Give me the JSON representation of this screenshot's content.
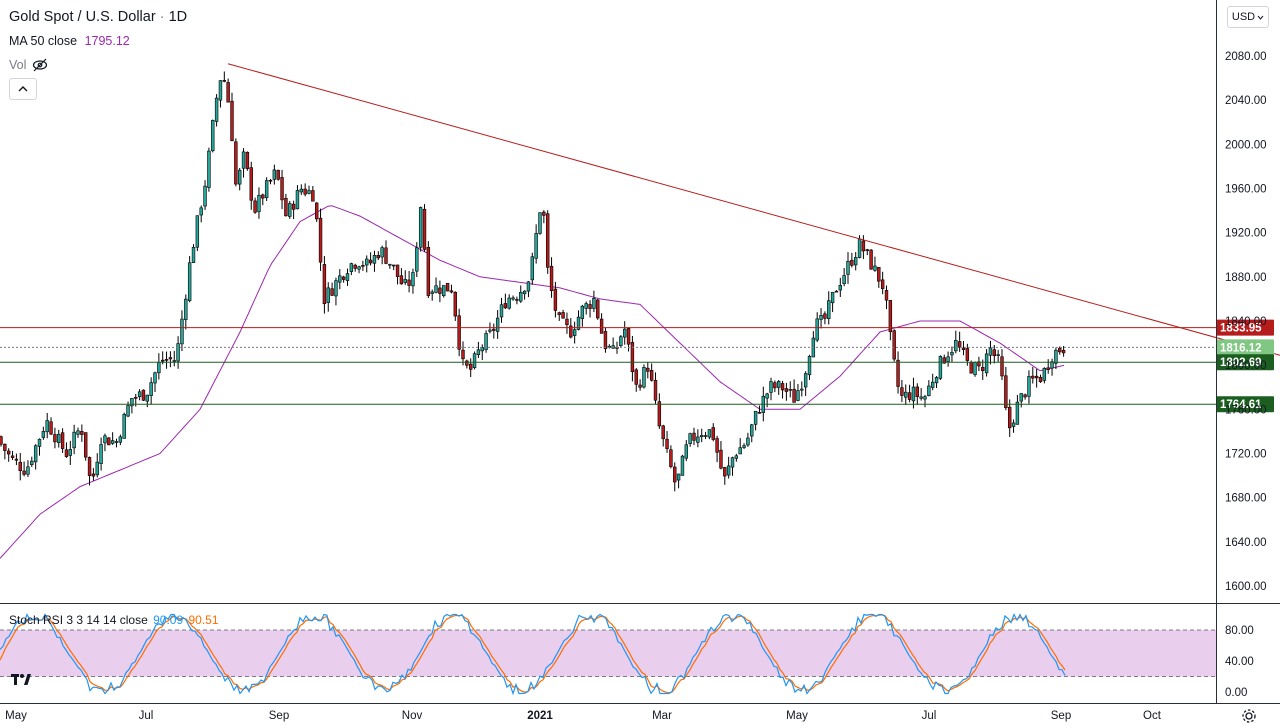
{
  "header": {
    "symbol": "Gold Spot / U.S. Dollar",
    "sep1": "·",
    "interval": "1D",
    "ma_label": "MA 50 close",
    "ma_value": "1795.12",
    "vol_label": "Vol",
    "currency": "USD"
  },
  "stoch": {
    "label": "Stoch RSI 3 3 14 14 close",
    "k_value": "90.09",
    "d_value": "90.51"
  },
  "colors": {
    "up": "#26a69a",
    "candle_up_body": "#ffffff",
    "candle_border": "#000000",
    "down": "#b71c1c",
    "ma": "#9c27b0",
    "trend": "#b71c1c",
    "support": "#1b5e20",
    "stoch_k": "#2196f3",
    "stoch_d": "#ff6d00",
    "stoch_band": "#e1bee7"
  },
  "chart_data": [
    {
      "type": "candlestick",
      "title": "Gold Spot / U.S. Dollar · 1D",
      "x_ticks": [
        "May",
        "Jul",
        "Sep",
        "Nov",
        "2021",
        "Mar",
        "May",
        "Jul",
        "Sep",
        "Oct"
      ],
      "y_ticks": [
        1600,
        1640,
        1680,
        1720,
        1760,
        1800,
        1840,
        1880,
        1920,
        1960,
        2000,
        2040,
        2080
      ],
      "ylim": [
        1586,
        2098
      ],
      "close_path": [
        [
          0,
          1735
        ],
        [
          15,
          1715
        ],
        [
          30,
          1705
        ],
        [
          50,
          1750
        ],
        [
          70,
          1720
        ],
        [
          85,
          1745
        ],
        [
          95,
          1690
        ],
        [
          105,
          1735
        ],
        [
          120,
          1730
        ],
        [
          135,
          1770
        ],
        [
          150,
          1775
        ],
        [
          165,
          1805
        ],
        [
          180,
          1805
        ],
        [
          195,
          1900
        ],
        [
          210,
          1970
        ],
        [
          220,
          2040
        ],
        [
          226,
          2068
        ],
        [
          234,
          2030
        ],
        [
          240,
          1960
        ],
        [
          248,
          1990
        ],
        [
          258,
          1940
        ],
        [
          270,
          1960
        ],
        [
          280,
          1975
        ],
        [
          290,
          1935
        ],
        [
          305,
          1960
        ],
        [
          318,
          1955
        ],
        [
          328,
          1860
        ],
        [
          340,
          1875
        ],
        [
          352,
          1890
        ],
        [
          362,
          1895
        ],
        [
          372,
          1890
        ],
        [
          384,
          1905
        ],
        [
          396,
          1890
        ],
        [
          408,
          1870
        ],
        [
          418,
          1880
        ],
        [
          424,
          1950
        ],
        [
          432,
          1870
        ],
        [
          444,
          1870
        ],
        [
          456,
          1870
        ],
        [
          466,
          1800
        ],
        [
          474,
          1795
        ],
        [
          484,
          1815
        ],
        [
          496,
          1830
        ],
        [
          510,
          1860
        ],
        [
          522,
          1865
        ],
        [
          534,
          1880
        ],
        [
          546,
          1955
        ],
        [
          552,
          1880
        ],
        [
          562,
          1840
        ],
        [
          574,
          1830
        ],
        [
          586,
          1850
        ],
        [
          598,
          1860
        ],
        [
          608,
          1820
        ],
        [
          618,
          1810
        ],
        [
          628,
          1835
        ],
        [
          640,
          1780
        ],
        [
          652,
          1800
        ],
        [
          664,
          1740
        ],
        [
          680,
          1690
        ],
        [
          692,
          1730
        ],
        [
          704,
          1740
        ],
        [
          716,
          1740
        ],
        [
          728,
          1695
        ],
        [
          738,
          1720
        ],
        [
          750,
          1730
        ],
        [
          762,
          1760
        ],
        [
          774,
          1780
        ],
        [
          786,
          1780
        ],
        [
          798,
          1770
        ],
        [
          808,
          1790
        ],
        [
          818,
          1835
        ],
        [
          828,
          1840
        ],
        [
          840,
          1870
        ],
        [
          852,
          1890
        ],
        [
          864,
          1910
        ],
        [
          876,
          1890
        ],
        [
          888,
          1870
        ],
        [
          896,
          1810
        ],
        [
          904,
          1770
        ],
        [
          916,
          1775
        ],
        [
          928,
          1770
        ],
        [
          940,
          1795
        ],
        [
          950,
          1810
        ],
        [
          960,
          1820
        ],
        [
          972,
          1800
        ],
        [
          984,
          1795
        ],
        [
          994,
          1815
        ],
        [
          1004,
          1800
        ],
        [
          1012,
          1740
        ],
        [
          1022,
          1765
        ],
        [
          1034,
          1785
        ],
        [
          1046,
          1790
        ],
        [
          1056,
          1810
        ],
        [
          1066,
          1816
        ]
      ],
      "ma50_path": [
        [
          0,
          1625
        ],
        [
          40,
          1665
        ],
        [
          80,
          1690
        ],
        [
          120,
          1705
        ],
        [
          160,
          1720
        ],
        [
          200,
          1760
        ],
        [
          240,
          1830
        ],
        [
          270,
          1890
        ],
        [
          300,
          1930
        ],
        [
          330,
          1945
        ],
        [
          360,
          1935
        ],
        [
          400,
          1915
        ],
        [
          440,
          1895
        ],
        [
          480,
          1880
        ],
        [
          520,
          1875
        ],
        [
          560,
          1870
        ],
        [
          600,
          1860
        ],
        [
          640,
          1855
        ],
        [
          680,
          1820
        ],
        [
          720,
          1785
        ],
        [
          760,
          1760
        ],
        [
          800,
          1760
        ],
        [
          840,
          1790
        ],
        [
          880,
          1830
        ],
        [
          920,
          1840
        ],
        [
          960,
          1840
        ],
        [
          1000,
          1820
        ],
        [
          1040,
          1795
        ],
        [
          1065,
          1800
        ]
      ],
      "lines": [
        {
          "name": "trend-line",
          "from": [
            228,
            2073
          ],
          "to": [
            1216,
            1825
          ]
        },
        {
          "name": "resistance",
          "y": 1833.95,
          "price_label": "1833.95"
        },
        {
          "name": "last-price",
          "y": 1816.12,
          "price_label": "1816.12"
        },
        {
          "name": "support-1",
          "y": 1802.69,
          "price_label": "1802.69"
        },
        {
          "name": "support-2",
          "y": 1764.61,
          "price_label": "1764.61"
        }
      ]
    },
    {
      "type": "line",
      "title": "Stoch RSI 3 3 14 14 close",
      "y_ticks": [
        0,
        40,
        80
      ],
      "y_tick_labels": [
        "0.00",
        "40.00",
        "80.00"
      ],
      "ylim": [
        -10,
        100
      ],
      "bands": [
        20,
        80
      ],
      "series": [
        {
          "name": "K",
          "value": 90.09
        },
        {
          "name": "D",
          "value": 90.51
        }
      ]
    }
  ]
}
